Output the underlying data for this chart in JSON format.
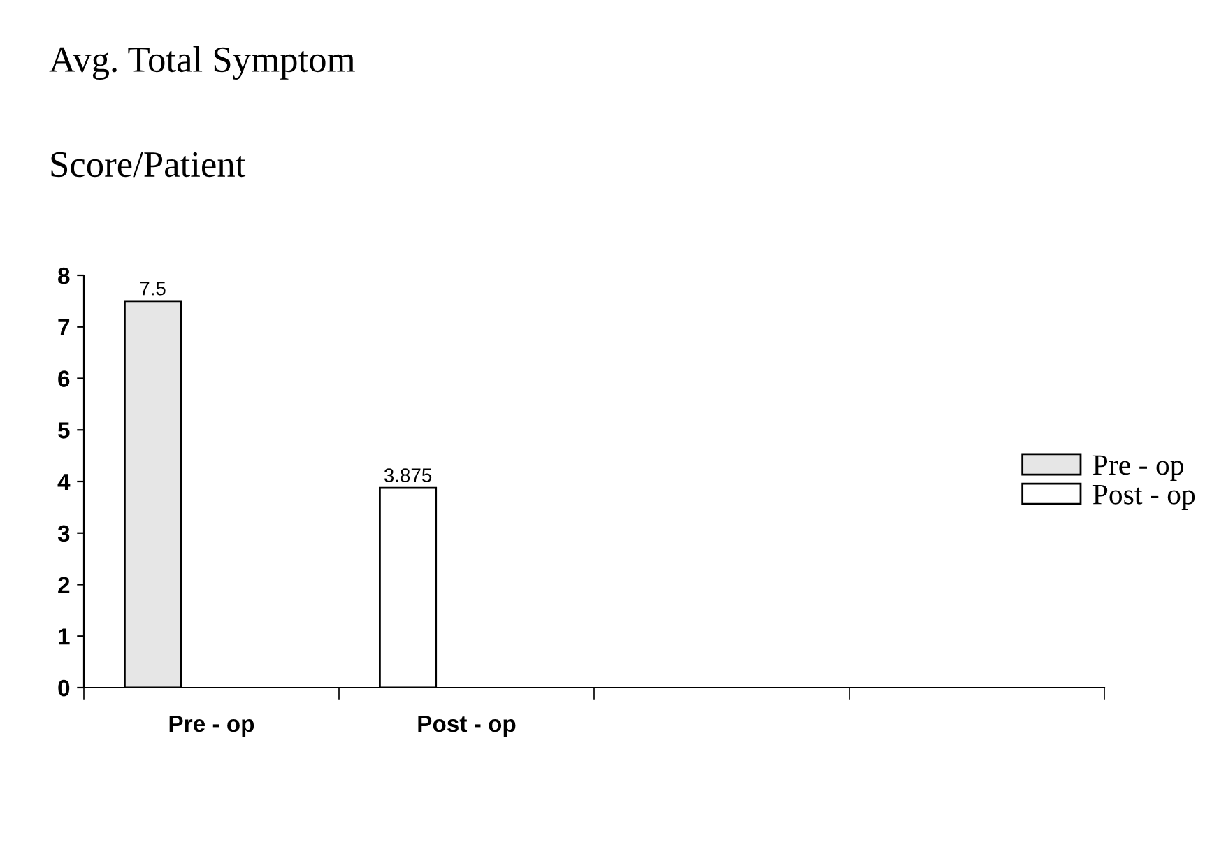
{
  "chart_data": {
    "type": "bar",
    "title": "Avg. Total Symptom",
    "subtitle": "Score/Patient",
    "categories": [
      "Pre - op",
      "Post - op",
      null,
      null
    ],
    "series": [
      {
        "name": "Pre - op",
        "color": "#e6e6e6",
        "values": [
          7.5,
          null,
          null,
          null
        ]
      },
      {
        "name": "Post - op",
        "color": "#ffffff",
        "values": [
          null,
          3.875,
          null,
          null
        ]
      }
    ],
    "ylim": [
      0,
      8
    ],
    "yticks": [
      0,
      1,
      2,
      3,
      4,
      5,
      6,
      7,
      8
    ],
    "data_labels": true,
    "legend": "right",
    "grid": false
  }
}
